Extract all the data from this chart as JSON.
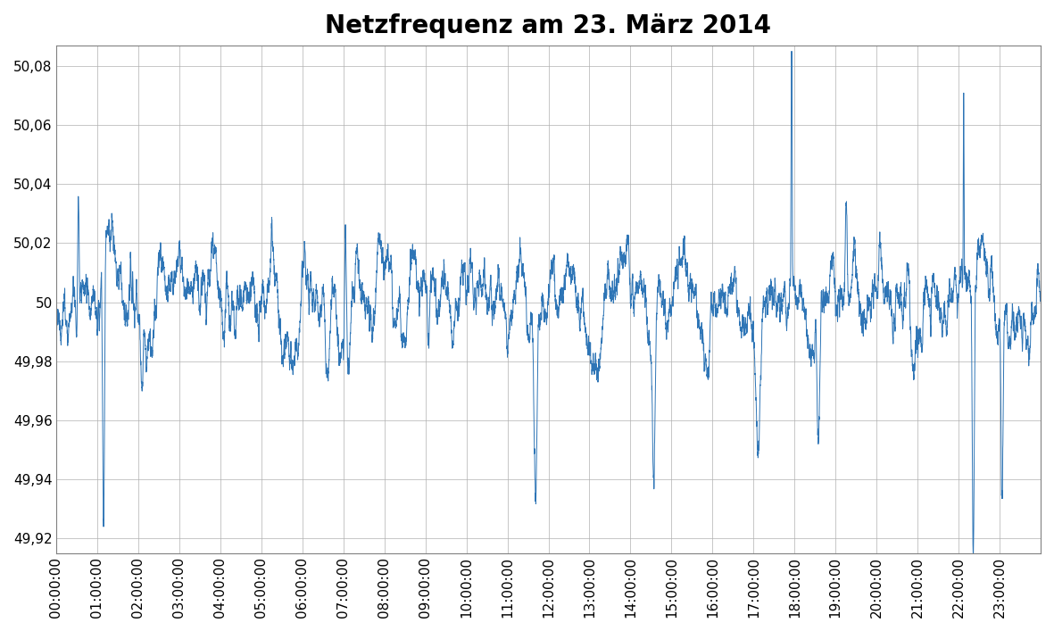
{
  "title": "Netzfrequenz am 23. März 2014",
  "title_fontsize": 20,
  "title_fontweight": "bold",
  "line_color": "#2E75B6",
  "line_width": 0.7,
  "background_color": "#ffffff",
  "plot_bg_color": "#ffffff",
  "grid_color": "#B0B0B0",
  "ylim": [
    49.915,
    50.087
  ],
  "yticks": [
    49.92,
    49.94,
    49.96,
    49.98,
    50.0,
    50.02,
    50.04,
    50.06,
    50.08
  ],
  "ytick_labels": [
    "49,92",
    "49,94",
    "49,96",
    "49,98",
    "50",
    "50,02",
    "50,04",
    "50,06",
    "50,08"
  ],
  "xlabel": "",
  "ylabel": "",
  "figsize": [
    11.81,
    7.07
  ],
  "dpi": 100,
  "n_samples": 86400,
  "seed": 123,
  "tick_fontsize": 11,
  "spine_color": "#808080",
  "sigma": 0.0005,
  "alpha": 0.002
}
